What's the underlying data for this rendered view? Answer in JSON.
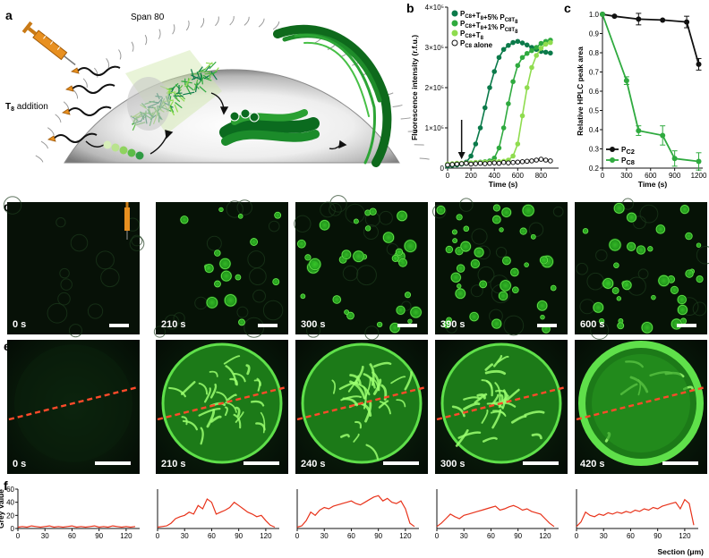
{
  "panel_labels": {
    "a": "a",
    "b": "b",
    "c": "c",
    "d": "d",
    "e": "e",
    "f": "f"
  },
  "schematic": {
    "surfactant_label": "Span 80",
    "addition_label": "T",
    "addition_sub": "8",
    "addition_suffix": " addition"
  },
  "colors": {
    "dark_green": "#0b7a4a",
    "mid_green": "#2faa3f",
    "light_green": "#8fdc4f",
    "grey_dark": "#2d2d2d",
    "line_red": "#e8331b",
    "dash_red": "#ff4a2a",
    "syringe_orange": "#e89020"
  },
  "time_labels_d": [
    "0 s",
    "210 s",
    "300 s",
    "390 s",
    "600 s"
  ],
  "time_labels_e": [
    "0 s",
    "210 s",
    "240 s",
    "300 s",
    "420 s"
  ],
  "chart_data": [
    {
      "type": "line",
      "panel": "b",
      "xlabel": "Time (s)",
      "ylabel": "Fluorescence intensity (r.f.u.)",
      "xlim": [
        0,
        950
      ],
      "ylim": [
        0,
        400000
      ],
      "xticks": [
        "0",
        "200",
        "400",
        "600",
        "800"
      ],
      "yticks": [
        "0",
        "1×10⁵",
        "2×10⁵",
        "3×10⁵",
        "4×10⁵"
      ],
      "legend_position": "top-left",
      "arrow_at_x": 120,
      "series": [
        {
          "name": "P_C8+T_8+5% P_C8T_8",
          "color": "#0b7a4a",
          "marker": "filled",
          "x": [
            0,
            40,
            80,
            120,
            160,
            200,
            240,
            280,
            320,
            360,
            400,
            440,
            480,
            520,
            560,
            600,
            640,
            680,
            720,
            760,
            800,
            840,
            880
          ],
          "y": [
            5000,
            7000,
            8000,
            10000,
            15000,
            30000,
            60000,
            100000,
            150000,
            200000,
            240000,
            275000,
            295000,
            305000,
            312000,
            315000,
            311000,
            306000,
            300000,
            295000,
            290000,
            288000,
            286000
          ]
        },
        {
          "name": "P_C8+T_8+1% P_C8T_8",
          "color": "#2faa3f",
          "marker": "filled",
          "x": [
            0,
            40,
            80,
            120,
            160,
            200,
            240,
            280,
            320,
            360,
            400,
            440,
            480,
            520,
            560,
            600,
            640,
            680,
            720,
            760,
            800,
            840,
            880
          ],
          "y": [
            8000,
            9000,
            10000,
            11000,
            12000,
            13000,
            14000,
            15000,
            16000,
            18000,
            25000,
            50000,
            100000,
            160000,
            215000,
            255000,
            275000,
            285000,
            292000,
            300000,
            310000,
            315000,
            318000
          ]
        },
        {
          "name": "P_C8+T_8",
          "color": "#8fdc4f",
          "marker": "filled",
          "x": [
            0,
            40,
            80,
            120,
            160,
            200,
            240,
            280,
            320,
            360,
            400,
            440,
            480,
            520,
            560,
            600,
            640,
            680,
            720,
            760,
            800,
            840,
            880
          ],
          "y": [
            10000,
            11000,
            12000,
            12000,
            13000,
            13000,
            14000,
            14000,
            15000,
            15000,
            16000,
            16000,
            17000,
            20000,
            30000,
            60000,
            130000,
            200000,
            250000,
            280000,
            298000,
            308000,
            312000
          ]
        },
        {
          "name": "P_C8 alone",
          "color": "#111111",
          "marker": "open",
          "x": [
            0,
            40,
            80,
            120,
            160,
            200,
            240,
            280,
            320,
            360,
            400,
            440,
            480,
            520,
            560,
            600,
            640,
            680,
            720,
            760,
            800,
            840,
            880
          ],
          "y": [
            8000,
            9000,
            10000,
            11000,
            12000,
            10000,
            11000,
            12000,
            11000,
            12000,
            13000,
            12000,
            14000,
            13000,
            14000,
            15000,
            16000,
            17000,
            18000,
            20000,
            22000,
            20000,
            18000
          ]
        }
      ]
    },
    {
      "type": "line",
      "panel": "c",
      "xlabel": "Time (s)",
      "ylabel": "Relative HPLC peak area",
      "xlim": [
        0,
        1250
      ],
      "ylim": [
        0.2,
        1.0
      ],
      "xticks": [
        "0",
        "300",
        "600",
        "900",
        "1200"
      ],
      "yticks": [
        "0.2",
        "0.3",
        "0.4",
        "0.5",
        "0.6",
        "0.7",
        "0.8",
        "0.9",
        "1.0"
      ],
      "legend_position": "bottom-left",
      "series": [
        {
          "name": "P_C2",
          "color": "#111111",
          "x": [
            0,
            150,
            450,
            750,
            1050,
            1200
          ],
          "y": [
            1.0,
            0.99,
            0.975,
            0.97,
            0.96,
            0.74
          ],
          "err": [
            0.0,
            0.0,
            0.03,
            0.0,
            0.03,
            0.03
          ]
        },
        {
          "name": "P_C8",
          "color": "#2faa3f",
          "x": [
            0,
            300,
            450,
            750,
            900,
            1200
          ],
          "y": [
            1.0,
            0.655,
            0.395,
            0.37,
            0.25,
            0.235
          ],
          "err": [
            0.0,
            0.02,
            0.025,
            0.05,
            0.04,
            0.045
          ]
        }
      ]
    },
    {
      "type": "line",
      "panel": "f",
      "xlabel": "Section (μm)",
      "ylabel": "Grey Value",
      "xlim": [
        0,
        135
      ],
      "ylim": [
        0,
        60
      ],
      "xticks": [
        "0",
        "30",
        "60",
        "90",
        "120"
      ],
      "yticks": [
        "0",
        "20",
        "40",
        "60"
      ],
      "series": [
        {
          "name": "0 s",
          "color": "#e8331b",
          "x": [
            0,
            5,
            10,
            15,
            20,
            25,
            30,
            35,
            40,
            45,
            50,
            55,
            60,
            65,
            70,
            75,
            80,
            85,
            90,
            95,
            100,
            105,
            110,
            115,
            120,
            125,
            130
          ],
          "y": [
            2,
            3,
            2,
            4,
            3,
            2,
            3,
            4,
            2,
            3,
            2,
            3,
            4,
            2,
            3,
            2,
            3,
            4,
            2,
            3,
            2,
            4,
            3,
            2,
            3,
            2,
            3
          ]
        },
        {
          "name": "210 s",
          "color": "#e8331b",
          "x": [
            0,
            5,
            10,
            15,
            20,
            25,
            30,
            35,
            40,
            45,
            50,
            55,
            60,
            65,
            70,
            75,
            80,
            85,
            90,
            95,
            100,
            105,
            110,
            115,
            120,
            125,
            130
          ],
          "y": [
            2,
            3,
            4,
            8,
            15,
            18,
            20,
            25,
            22,
            35,
            30,
            45,
            40,
            22,
            25,
            28,
            32,
            40,
            35,
            30,
            25,
            22,
            18,
            20,
            12,
            5,
            2
          ]
        },
        {
          "name": "240 s",
          "color": "#e8331b",
          "x": [
            0,
            5,
            10,
            15,
            20,
            25,
            30,
            35,
            40,
            45,
            50,
            55,
            60,
            65,
            70,
            75,
            80,
            85,
            90,
            95,
            100,
            105,
            110,
            115,
            120,
            125,
            130
          ],
          "y": [
            2,
            4,
            12,
            25,
            20,
            28,
            32,
            30,
            34,
            36,
            38,
            40,
            42,
            38,
            36,
            40,
            44,
            48,
            50,
            42,
            46,
            40,
            38,
            42,
            30,
            8,
            3
          ]
        },
        {
          "name": "300 s",
          "color": "#e8331b",
          "x": [
            0,
            5,
            10,
            15,
            20,
            25,
            30,
            35,
            40,
            45,
            50,
            55,
            60,
            65,
            70,
            75,
            80,
            85,
            90,
            95,
            100,
            105,
            110,
            115,
            120,
            125,
            130
          ],
          "y": [
            3,
            8,
            15,
            22,
            18,
            15,
            20,
            22,
            24,
            26,
            28,
            30,
            32,
            34,
            28,
            30,
            33,
            35,
            32,
            28,
            30,
            26,
            24,
            22,
            15,
            8,
            3
          ]
        },
        {
          "name": "420 s",
          "color": "#e8331b",
          "x": [
            0,
            5,
            10,
            15,
            20,
            25,
            30,
            35,
            40,
            45,
            50,
            55,
            60,
            65,
            70,
            75,
            80,
            85,
            90,
            95,
            100,
            105,
            110,
            115,
            120,
            125,
            130
          ],
          "y": [
            3,
            10,
            25,
            20,
            18,
            22,
            20,
            24,
            22,
            25,
            23,
            26,
            24,
            28,
            26,
            30,
            28,
            32,
            30,
            34,
            36,
            38,
            40,
            30,
            44,
            38,
            5
          ]
        }
      ]
    }
  ]
}
